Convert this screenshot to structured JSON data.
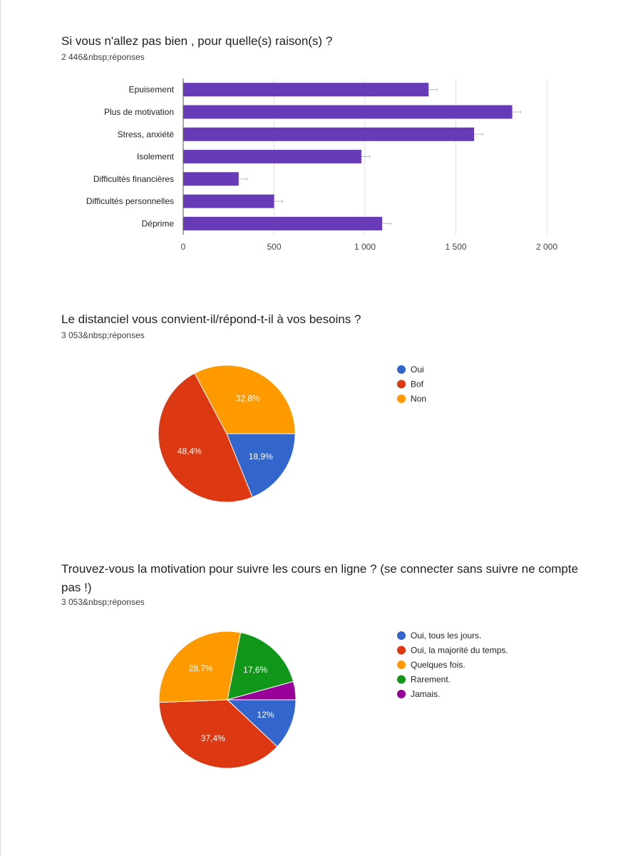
{
  "questions": [
    {
      "title": "Si vous n'allez pas bien , pour quelle(s) raison(s) ?",
      "responses": "2 446&nbsp;réponses"
    },
    {
      "title": "Le distanciel vous convient-il/répond-t-il à vos besoins ?",
      "responses": "3 053&nbsp;réponses"
    },
    {
      "title_line1": "Trouvez-vous la motivation pour suivre les cours en ligne ? (se connecter sans suivre ne compte",
      "title_line2": "pas !)",
      "responses": "3 053&nbsp;réponses"
    }
  ],
  "chart_data": [
    {
      "type": "bar",
      "orientation": "horizontal",
      "categories": [
        "Epuisement",
        "Plus de motivation",
        "Stress, anxiété",
        "Isolement",
        "Difficultés financières",
        "Difficultés personnelles",
        "Déprime"
      ],
      "values": [
        1350,
        1810,
        1600,
        980,
        305,
        500,
        1095
      ],
      "xlim": [
        0,
        2000
      ],
      "xticks": [
        0,
        500,
        1000,
        1500,
        2000
      ],
      "xtick_labels": [
        "0",
        "500",
        "1 000",
        "1 500",
        "2 000"
      ],
      "grid": true,
      "color": "#673ab7"
    },
    {
      "type": "pie",
      "slices": [
        {
          "label": "Oui",
          "value": 18.9,
          "display": "18,9%",
          "color": "#3366cc"
        },
        {
          "label": "Bof",
          "value": 48.4,
          "display": "48,4%",
          "color": "#dc3912"
        },
        {
          "label": "Non",
          "value": 32.8,
          "display": "32,8%",
          "color": "#ff9900"
        }
      ],
      "legend_position": "right"
    },
    {
      "type": "pie",
      "slices": [
        {
          "label": "Oui, tous les jours.",
          "value": 12.0,
          "display": "12%",
          "color": "#3366cc"
        },
        {
          "label": "Oui, la majorité du temps.",
          "value": 37.4,
          "display": "37,4%",
          "color": "#dc3912"
        },
        {
          "label": "Quelques fois.",
          "value": 28.7,
          "display": "28,7%",
          "color": "#ff9900"
        },
        {
          "label": "Rarement.",
          "value": 17.6,
          "display": "17,6%",
          "color": "#109618"
        },
        {
          "label": "Jamais.",
          "value": 4.3,
          "display": "",
          "color": "#990099"
        }
      ],
      "legend_position": "right"
    }
  ]
}
